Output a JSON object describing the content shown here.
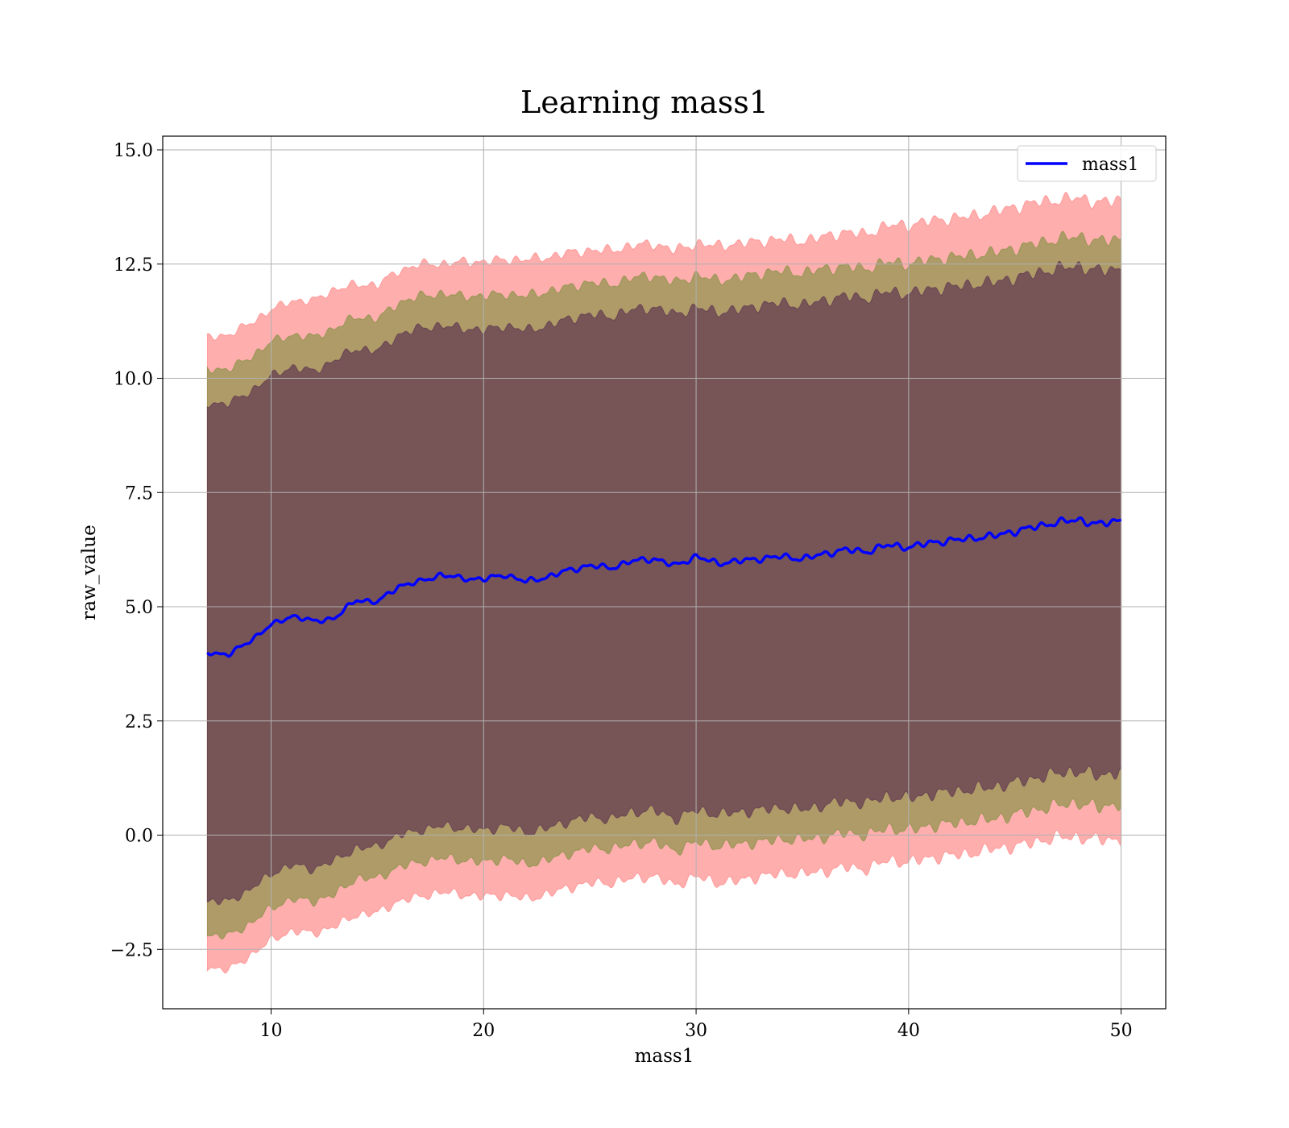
{
  "chart_data": {
    "type": "area",
    "title": "Learning mass1",
    "xlabel": "mass1",
    "ylabel": "raw_value",
    "xlim": [
      4.9,
      52.1
    ],
    "ylim": [
      -3.8,
      15.3
    ],
    "xticks": [
      10,
      20,
      30,
      40,
      50
    ],
    "xtick_labels": [
      "10",
      "20",
      "30",
      "40",
      "50"
    ],
    "yticks": [
      -2.5,
      0.0,
      2.5,
      5.0,
      7.5,
      10.0,
      12.5,
      15.0
    ],
    "ytick_labels": [
      "−2.5",
      "0.0",
      "2.5",
      "5.0",
      "7.5",
      "10.0",
      "12.5",
      "15.0"
    ],
    "grid": true,
    "legend": {
      "placement": "top-right",
      "entries": [
        "mass1"
      ]
    },
    "x": [
      7.0,
      8.0,
      9.0,
      10.0,
      11.0,
      12.0,
      13.0,
      14.0,
      15.0,
      16.0,
      17.0,
      18.0,
      19.0,
      20.0,
      21.0,
      22.0,
      23.0,
      24.0,
      25.0,
      26.0,
      27.0,
      28.0,
      29.0,
      30.0,
      31.0,
      32.0,
      33.0,
      34.0,
      35.0,
      36.0,
      37.0,
      38.0,
      39.0,
      40.0,
      41.0,
      42.0,
      43.0,
      44.0,
      45.0,
      46.0,
      47.0,
      48.0,
      49.0,
      50.0
    ],
    "series": [
      {
        "name": "mass1",
        "color": "#0000ff",
        "values": [
          4.0,
          3.95,
          4.25,
          4.6,
          4.8,
          4.68,
          4.75,
          5.15,
          5.1,
          5.45,
          5.55,
          5.7,
          5.62,
          5.6,
          5.7,
          5.55,
          5.65,
          5.8,
          5.9,
          5.85,
          6.0,
          6.05,
          5.9,
          6.1,
          5.95,
          6.0,
          6.05,
          6.1,
          6.05,
          6.15,
          6.25,
          6.2,
          6.35,
          6.3,
          6.4,
          6.45,
          6.5,
          6.55,
          6.65,
          6.75,
          6.85,
          6.9,
          6.8,
          6.9
        ]
      }
    ],
    "bands": [
      {
        "color": "#ff6b6b",
        "upper": [
          10.9,
          10.95,
          11.2,
          11.5,
          11.7,
          11.7,
          11.95,
          12.05,
          12.05,
          12.35,
          12.5,
          12.5,
          12.55,
          12.55,
          12.6,
          12.6,
          12.65,
          12.75,
          12.8,
          12.8,
          12.9,
          12.95,
          12.8,
          12.95,
          12.9,
          12.95,
          13.0,
          13.05,
          13.0,
          13.1,
          13.2,
          13.15,
          13.35,
          13.35,
          13.45,
          13.5,
          13.55,
          13.65,
          13.75,
          13.85,
          13.9,
          13.95,
          13.85,
          13.9
        ],
        "lower": [
          -2.9,
          -2.95,
          -2.65,
          -2.3,
          -2.1,
          -2.15,
          -2.0,
          -1.75,
          -1.7,
          -1.45,
          -1.35,
          -1.25,
          -1.3,
          -1.35,
          -1.3,
          -1.4,
          -1.3,
          -1.15,
          -1.05,
          -1.05,
          -0.95,
          -0.9,
          -1.1,
          -0.9,
          -1.05,
          -1.0,
          -0.9,
          -0.85,
          -0.85,
          -0.8,
          -0.7,
          -0.75,
          -0.55,
          -0.6,
          -0.5,
          -0.45,
          -0.4,
          -0.3,
          -0.25,
          -0.15,
          -0.05,
          -0.05,
          -0.1,
          -0.1
        ]
      },
      {
        "color": "#6b8c2e",
        "upper": [
          10.2,
          10.2,
          10.45,
          10.8,
          10.95,
          10.9,
          11.1,
          11.35,
          11.3,
          11.65,
          11.8,
          11.85,
          11.8,
          11.8,
          11.85,
          11.8,
          11.9,
          12.0,
          12.1,
          12.05,
          12.2,
          12.25,
          12.1,
          12.25,
          12.15,
          12.2,
          12.3,
          12.35,
          12.3,
          12.4,
          12.45,
          12.4,
          12.55,
          12.5,
          12.6,
          12.65,
          12.7,
          12.75,
          12.85,
          12.95,
          13.05,
          13.1,
          13.0,
          13.05
        ],
        "lower": [
          -2.2,
          -2.2,
          -1.95,
          -1.6,
          -1.4,
          -1.45,
          -1.3,
          -0.95,
          -0.95,
          -0.7,
          -0.6,
          -0.5,
          -0.55,
          -0.6,
          -0.5,
          -0.65,
          -0.55,
          -0.4,
          -0.3,
          -0.3,
          -0.2,
          -0.15,
          -0.35,
          -0.15,
          -0.25,
          -0.2,
          -0.15,
          -0.1,
          -0.1,
          -0.05,
          0.05,
          0.0,
          0.15,
          0.1,
          0.2,
          0.25,
          0.3,
          0.35,
          0.45,
          0.55,
          0.65,
          0.7,
          0.6,
          0.7
        ]
      },
      {
        "color": "#4b1b4b",
        "upper": [
          9.45,
          9.45,
          9.7,
          10.05,
          10.25,
          10.15,
          10.4,
          10.65,
          10.6,
          10.95,
          11.1,
          11.15,
          11.1,
          11.05,
          11.15,
          11.05,
          11.15,
          11.3,
          11.4,
          11.35,
          11.5,
          11.55,
          11.4,
          11.55,
          11.45,
          11.5,
          11.6,
          11.65,
          11.6,
          11.7,
          11.8,
          11.75,
          11.9,
          11.85,
          11.95,
          12.0,
          12.05,
          12.1,
          12.2,
          12.3,
          12.4,
          12.45,
          12.35,
          12.4
        ],
        "lower": [
          -1.45,
          -1.45,
          -1.2,
          -0.85,
          -0.65,
          -0.75,
          -0.55,
          -0.3,
          -0.25,
          0.0,
          0.1,
          0.2,
          0.15,
          0.1,
          0.2,
          0.05,
          0.15,
          0.3,
          0.4,
          0.35,
          0.5,
          0.55,
          0.35,
          0.55,
          0.45,
          0.5,
          0.55,
          0.6,
          0.55,
          0.65,
          0.75,
          0.7,
          0.85,
          0.8,
          0.9,
          0.95,
          1.0,
          1.05,
          1.15,
          1.25,
          1.35,
          1.4,
          1.3,
          1.4
        ]
      }
    ]
  }
}
